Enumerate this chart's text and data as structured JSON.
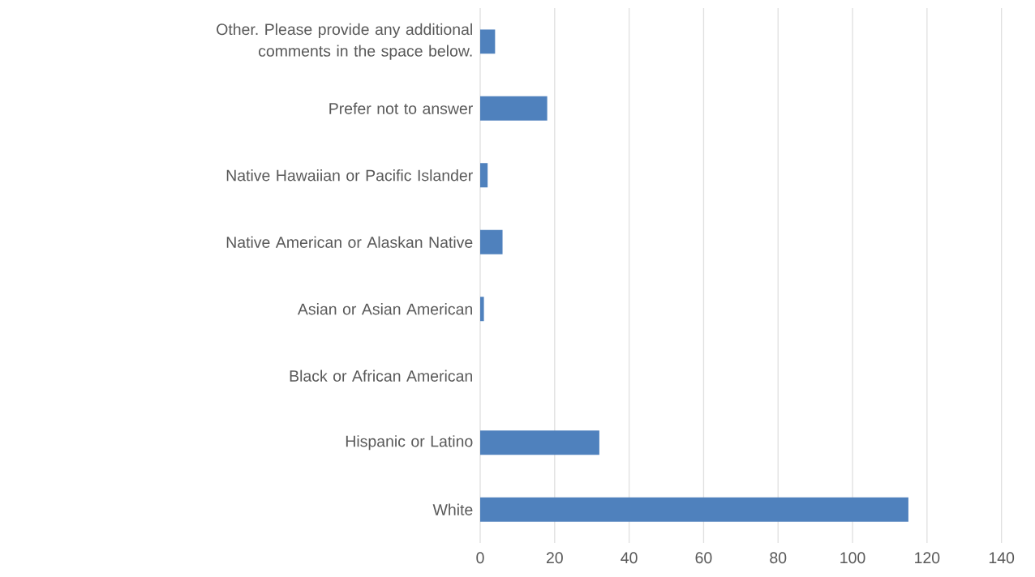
{
  "chart_data": {
    "type": "bar",
    "orientation": "horizontal",
    "categories": [
      "Other. Please provide any additional comments in the space below.",
      "Prefer not to answer",
      "Native Hawaiian or Pacific Islander",
      "Native American or Alaskan Native",
      "Asian or Asian American",
      "Black or African American",
      "Hispanic or Latino",
      "White"
    ],
    "values": [
      4,
      18,
      2,
      6,
      1,
      0,
      32,
      115
    ],
    "color": "#4f81bd",
    "xlim": [
      0,
      140
    ],
    "xticks": [
      0,
      20,
      40,
      60,
      80,
      100,
      120,
      140
    ],
    "grid": "x"
  }
}
